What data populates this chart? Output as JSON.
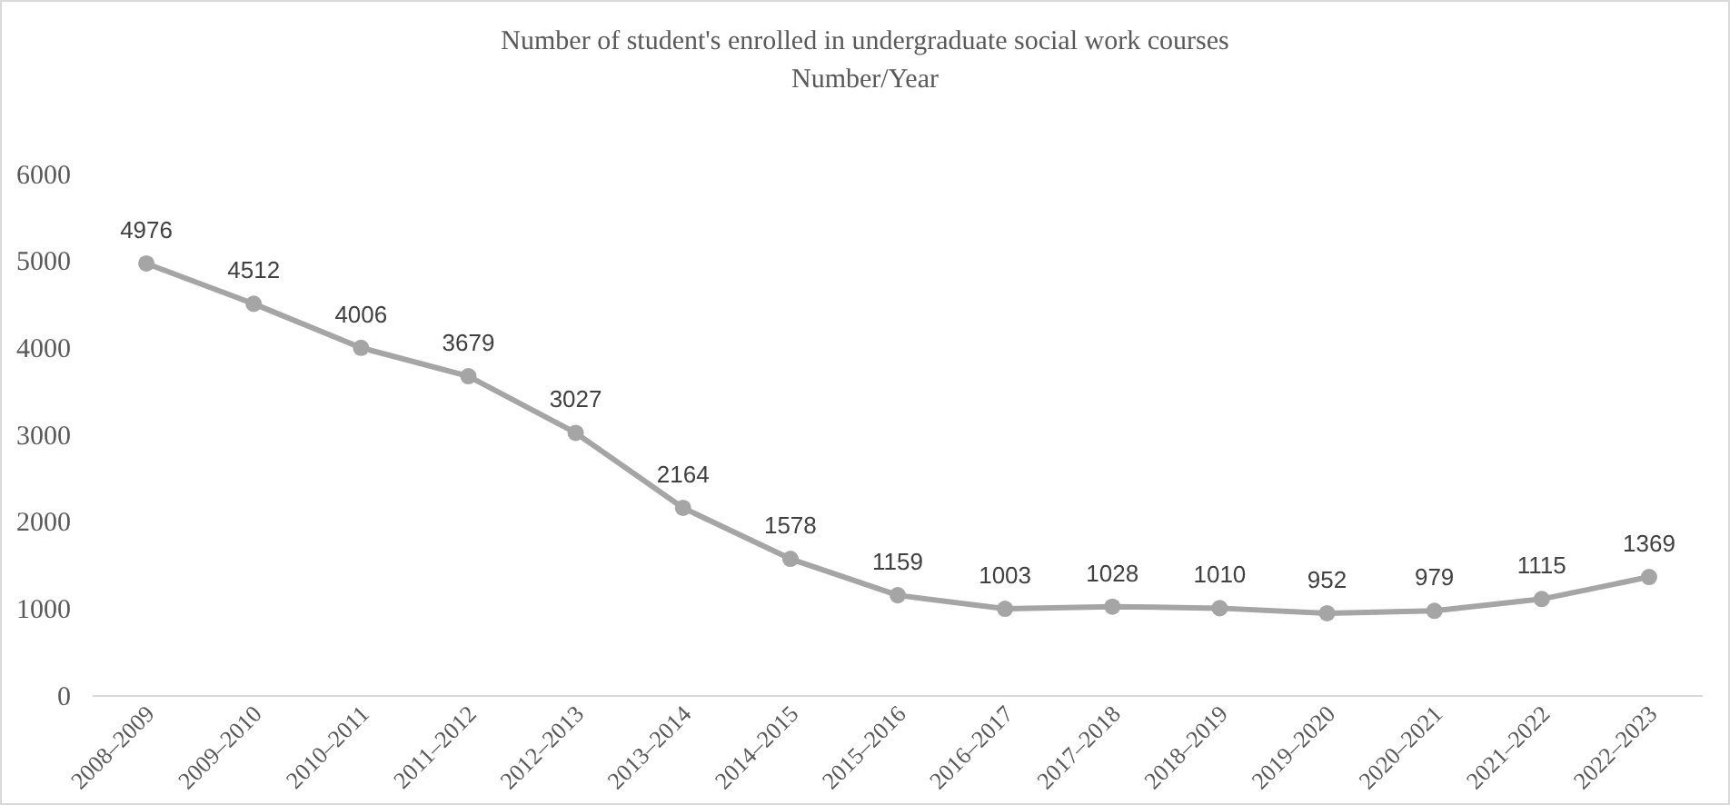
{
  "chart_data": {
    "type": "line",
    "title": "Number of student's enrolled in undergraduate social work courses",
    "subtitle": "Number/Year",
    "categories": [
      "2008–2009",
      "2009–2010",
      "2010–2011",
      "2011–2012",
      "2012–2013",
      "2013–2014",
      "2014–2015",
      "2015–2016",
      "2016–2017",
      "2017–2018",
      "2018–2019",
      "2019–2020",
      "2020–2021",
      "2021–2022",
      "2022–2023"
    ],
    "series": [
      {
        "color": "#a5a5a5",
        "values": [
          4976,
          4512,
          4006,
          3679,
          3027,
          2164,
          1578,
          1159,
          1003,
          1028,
          1010,
          952,
          979,
          1115,
          1369
        ]
      }
    ],
    "ylim": [
      0,
      6000
    ],
    "yticks": [
      0,
      1000,
      2000,
      3000,
      4000,
      5000,
      6000
    ],
    "data_labels": true,
    "marker": "circle",
    "line_style": "solid"
  }
}
